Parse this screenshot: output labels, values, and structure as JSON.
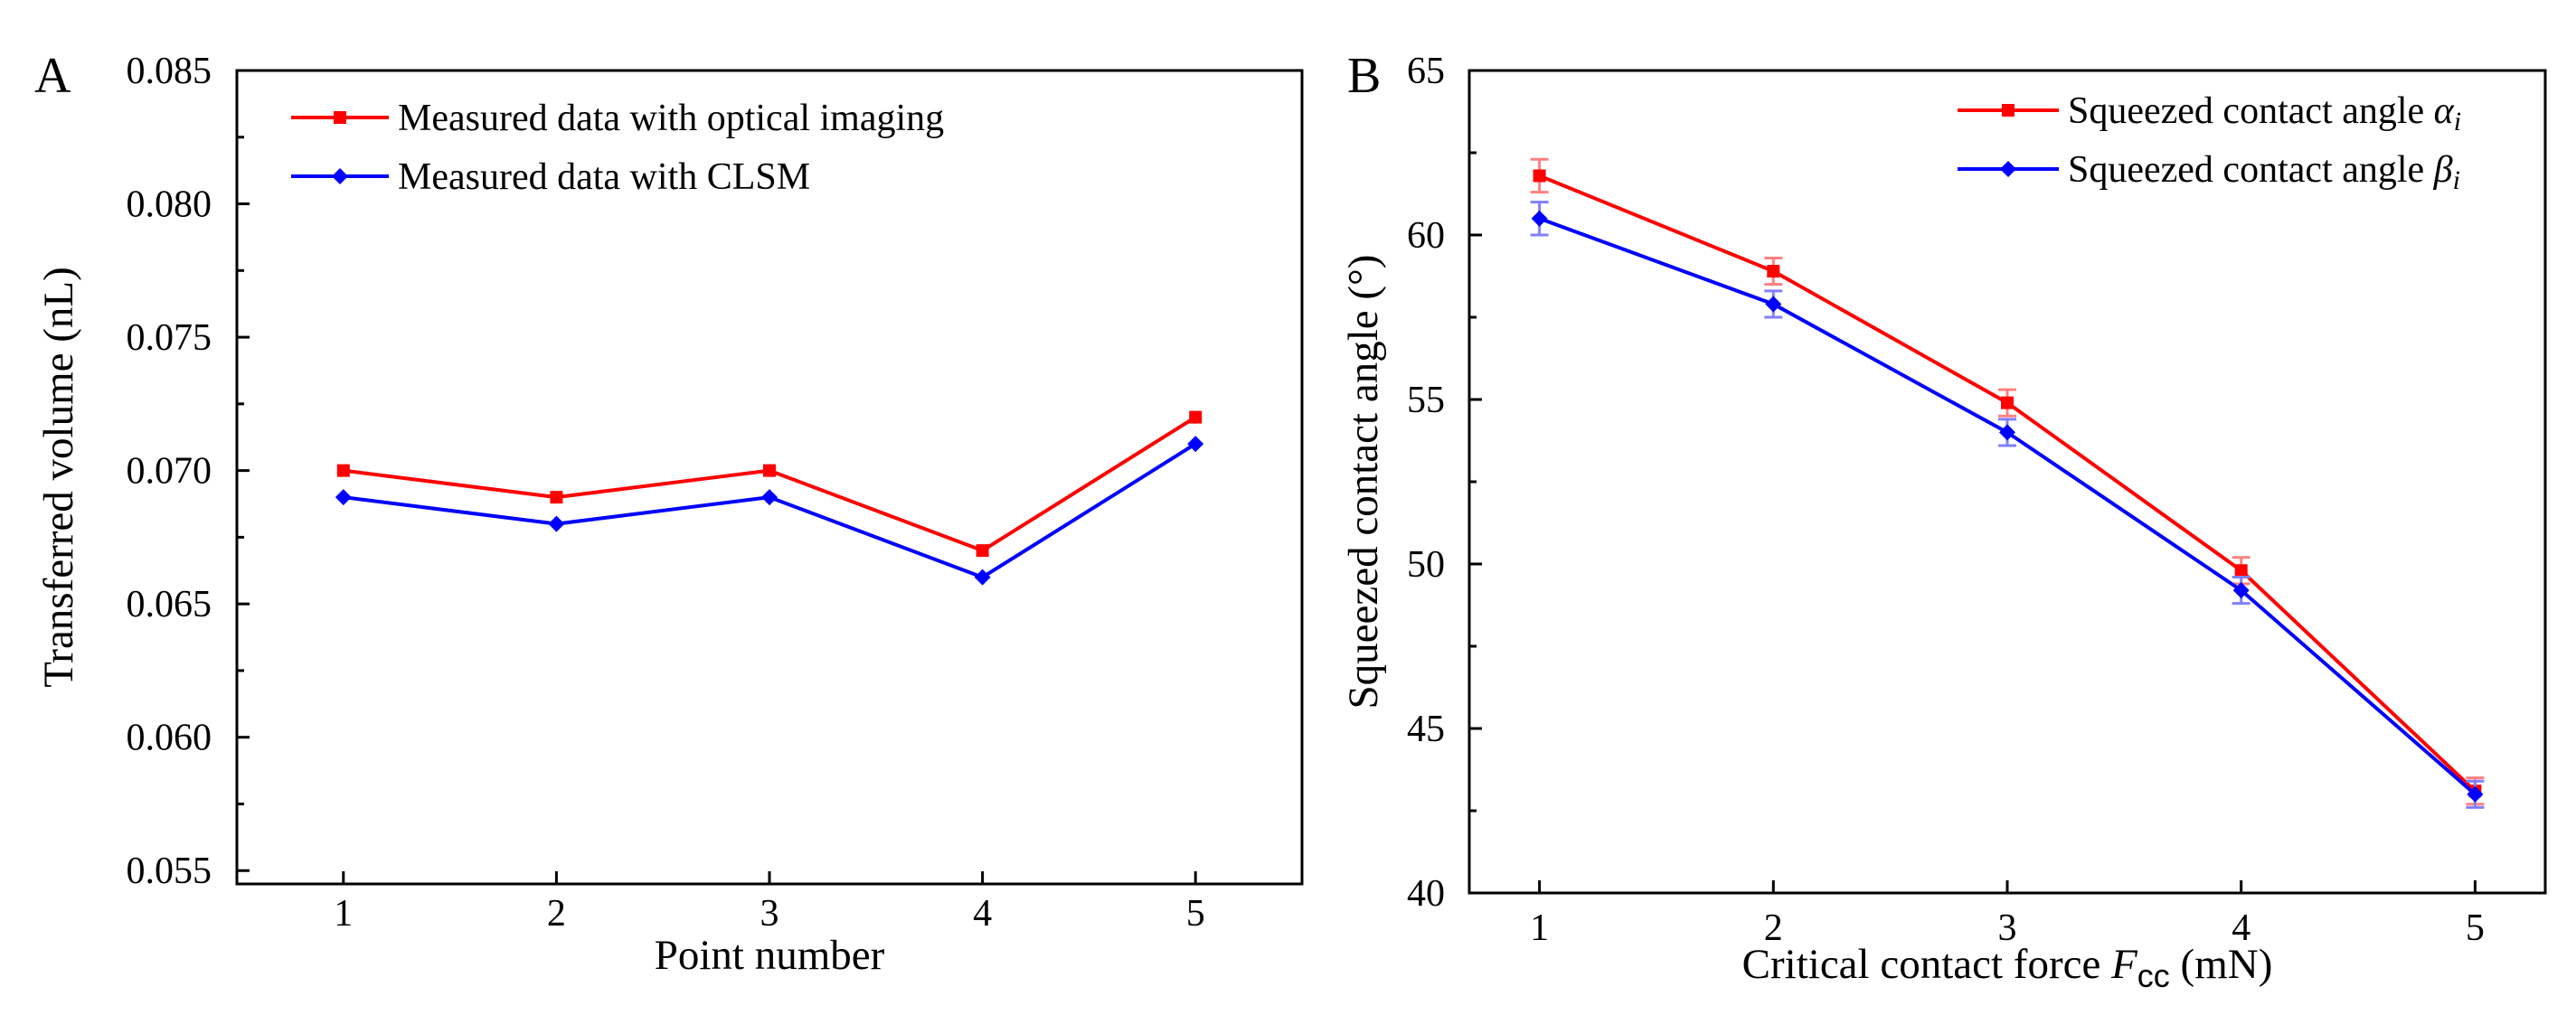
{
  "colors": {
    "series_red": "#ff0000",
    "series_blue": "#0000ff",
    "error_red": "#ff8080",
    "error_blue": "#8080ff"
  },
  "chart_data": [
    {
      "panel_label": "A",
      "type": "line",
      "xlabel": "Point number",
      "ylabel": "Transferred volume (nL)",
      "x": [
        1,
        2,
        3,
        4,
        5
      ],
      "x_ticks": [
        "1",
        "2",
        "3",
        "4",
        "5"
      ],
      "xlim": [
        0.5,
        5.5
      ],
      "ylim": [
        0.0545,
        0.085
      ],
      "y_ticks": [
        0.055,
        0.06,
        0.065,
        0.07,
        0.075,
        0.08,
        0.085
      ],
      "y_tick_labels": [
        "0.055",
        "0.060",
        "0.065",
        "0.070",
        "0.075",
        "0.080",
        "0.085"
      ],
      "legend_position": "top-left",
      "series": [
        {
          "name": "Measured data with optical imaging",
          "color": "#ff0000",
          "marker": "square",
          "values": [
            0.07,
            0.069,
            0.07,
            0.067,
            0.072
          ]
        },
        {
          "name": "Measured data with CLSM",
          "color": "#0000ff",
          "marker": "diamond",
          "values": [
            0.069,
            0.068,
            0.069,
            0.066,
            0.071
          ]
        }
      ]
    },
    {
      "panel_label": "B",
      "type": "line",
      "xlabel_prefix": "Critical contact force ",
      "xlabel_symbol": "F",
      "xlabel_subscript": "cc",
      "xlabel_suffix": " (mN)",
      "ylabel": "Squeezed contact angle (°)",
      "x": [
        1,
        2,
        3,
        4,
        5
      ],
      "x_ticks": [
        "1",
        "2",
        "3",
        "4",
        "5"
      ],
      "xlim": [
        0.7,
        5.3
      ],
      "ylim": [
        40,
        65
      ],
      "y_ticks": [
        40,
        45,
        50,
        55,
        60,
        65
      ],
      "y_tick_labels": [
        "40",
        "45",
        "50",
        "55",
        "60",
        "65"
      ],
      "legend_position": "top-right",
      "series": [
        {
          "name_prefix": "Squeezed contact angle ",
          "symbol": "α",
          "subscript": "i",
          "color": "#ff0000",
          "marker": "square",
          "values": [
            61.8,
            58.9,
            54.9,
            49.8,
            43.1
          ],
          "errors": [
            0.5,
            0.4,
            0.4,
            0.4,
            0.4
          ]
        },
        {
          "name_prefix": "Squeezed contact angle ",
          "symbol": "β",
          "subscript": "i",
          "color": "#0000ff",
          "marker": "diamond",
          "values": [
            60.5,
            57.9,
            54.0,
            49.2,
            43.0
          ],
          "errors": [
            0.5,
            0.4,
            0.4,
            0.4,
            0.4
          ]
        }
      ]
    }
  ]
}
